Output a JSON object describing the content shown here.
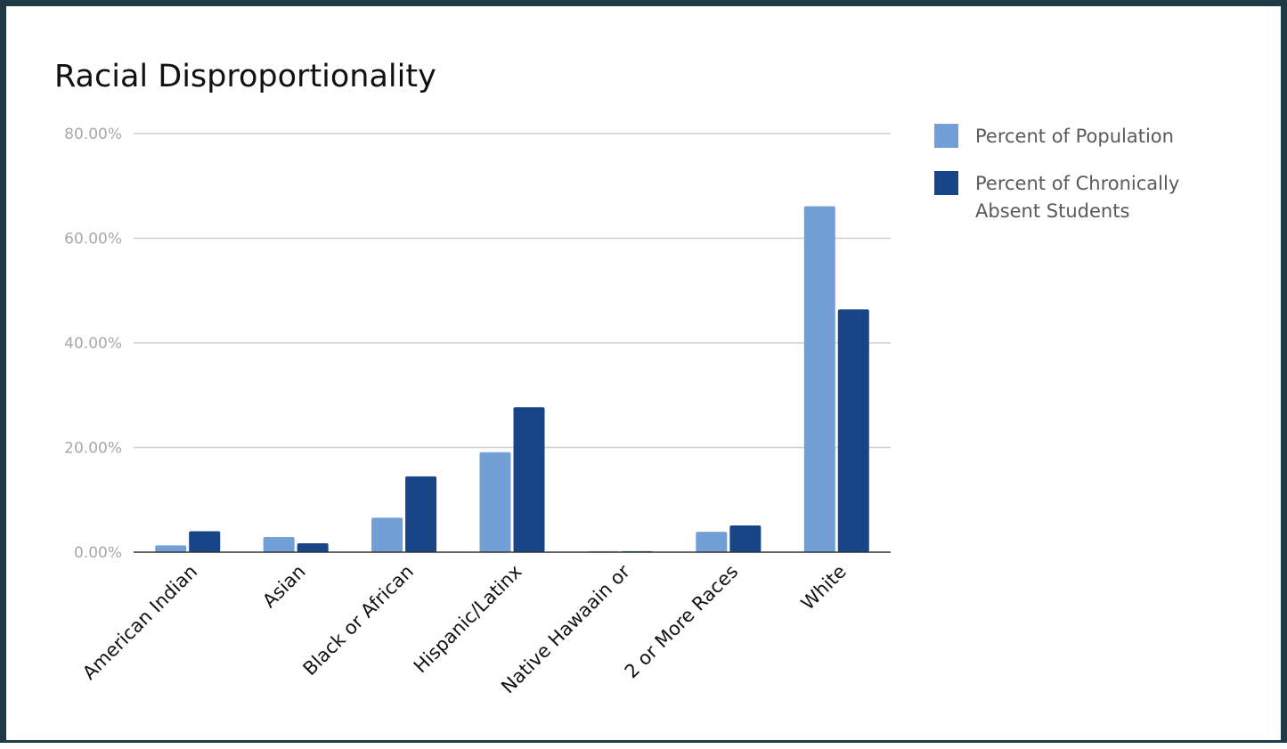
{
  "chart_data": {
    "type": "bar",
    "title": "Racial Disproportionality",
    "xlabel": "",
    "ylabel": "",
    "ylim": [
      0,
      80
    ],
    "yticks": [
      "0.00%",
      "20.00%",
      "40.00%",
      "60.00%",
      "80.00%"
    ],
    "ytick_values": [
      0,
      20,
      40,
      60,
      80
    ],
    "categories": [
      "American Indian",
      "Asian",
      "Black or African",
      "Hispanic/Latinx",
      "Native Hawaain or",
      "2 or More Races",
      "White"
    ],
    "series": [
      {
        "name": "Percent of Population",
        "color": "#729fd6",
        "values": [
          1.3,
          2.9,
          6.6,
          19.1,
          0.2,
          3.9,
          66.1
        ]
      },
      {
        "name": "Percent of Chronically Absent Students",
        "name_lines": [
          "Percent of Chronically",
          "Absent Students"
        ],
        "color": "#174588",
        "values": [
          4.0,
          1.7,
          14.5,
          27.7,
          0.2,
          5.1,
          46.4
        ]
      }
    ],
    "grid": true,
    "legend_position": "top-right"
  }
}
